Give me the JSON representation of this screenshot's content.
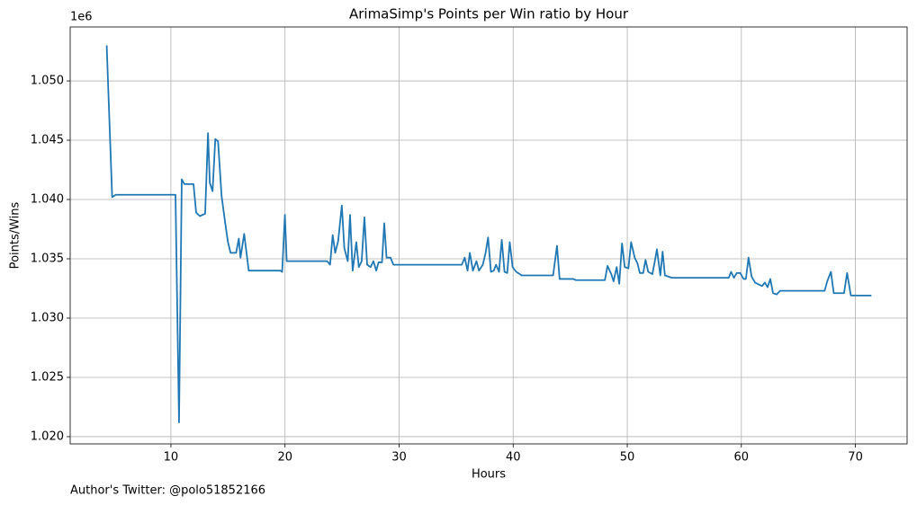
{
  "chart_data": {
    "type": "line",
    "title": "ArimaSimp's Points per Win ratio by Hour",
    "x_label": "Hours",
    "y_label": "Points/Wins",
    "y_offset_label": "1e6",
    "footnote": "Author's Twitter: @polo51852166",
    "color": "#1f77b4",
    "grid": true,
    "xlim": [
      1.17,
      74.53
    ],
    "ylim": [
      1019390,
      1054550
    ],
    "xticks": [
      10,
      20,
      30,
      40,
      50,
      60,
      70
    ],
    "yticks": [
      {
        "value": 1020000,
        "label": "1.020"
      },
      {
        "value": 1025000,
        "label": "1.025"
      },
      {
        "value": 1030000,
        "label": "1.030"
      },
      {
        "value": 1035000,
        "label": "1.035"
      },
      {
        "value": 1040000,
        "label": "1.040"
      },
      {
        "value": 1045000,
        "label": "1.045"
      },
      {
        "value": 1050000,
        "label": "1.050"
      }
    ],
    "x": [
      4.37,
      4.85,
      5.17,
      10.4,
      10.71,
      10.95,
      11.18,
      11.98,
      12.21,
      12.53,
      13.0,
      13.25,
      13.41,
      13.65,
      13.89,
      14.13,
      14.44,
      14.76,
      15.0,
      15.23,
      15.71,
      15.95,
      16.1,
      16.42,
      16.82,
      19.59,
      19.75,
      19.99,
      20.15,
      23.7,
      23.95,
      24.18,
      24.4,
      24.66,
      24.98,
      25.2,
      25.5,
      25.7,
      25.93,
      26.25,
      26.47,
      26.72,
      26.96,
      27.2,
      27.5,
      27.75,
      28.0,
      28.2,
      28.5,
      28.7,
      28.9,
      29.25,
      29.5,
      35.5,
      35.75,
      36.0,
      36.2,
      36.47,
      36.78,
      37.0,
      37.34,
      37.58,
      37.8,
      38.05,
      38.3,
      38.5,
      38.76,
      39.0,
      39.24,
      39.48,
      39.7,
      39.95,
      40.27,
      40.75,
      43.5,
      43.84,
      44.07,
      45.26,
      45.5,
      48.04,
      48.27,
      48.6,
      48.8,
      49.07,
      49.3,
      49.54,
      49.78,
      50.1,
      50.34,
      50.65,
      50.9,
      51.1,
      51.4,
      51.6,
      51.84,
      52.2,
      52.4,
      52.6,
      52.9,
      53.1,
      53.3,
      53.9,
      58.9,
      59.1,
      59.35,
      59.6,
      59.9,
      60.2,
      60.4,
      60.63,
      60.9,
      61.2,
      61.6,
      61.82,
      62.06,
      62.3,
      62.54,
      62.78,
      63.1,
      63.4,
      67.3,
      67.53,
      67.85,
      68.1,
      69.0,
      69.27,
      69.6,
      71.4
    ],
    "values": [
      1053000,
      1040200,
      1040400,
      1040400,
      1021200,
      1041700,
      1041300,
      1041300,
      1038900,
      1038600,
      1038800,
      1045600,
      1041400,
      1040700,
      1045100,
      1044900,
      1040300,
      1038000,
      1036400,
      1035500,
      1035500,
      1036700,
      1035100,
      1037100,
      1034000,
      1034000,
      1033900,
      1038700,
      1034800,
      1034800,
      1034500,
      1037000,
      1035500,
      1036500,
      1039500,
      1035900,
      1034800,
      1038700,
      1034000,
      1036400,
      1034300,
      1034800,
      1038500,
      1034500,
      1034300,
      1034800,
      1034000,
      1034700,
      1034700,
      1038000,
      1035100,
      1035100,
      1034500,
      1034500,
      1035100,
      1034000,
      1035500,
      1034000,
      1034800,
      1034000,
      1034500,
      1035500,
      1036800,
      1033900,
      1034000,
      1034500,
      1033900,
      1036600,
      1033900,
      1033800,
      1036400,
      1034300,
      1033900,
      1033600,
      1033600,
      1036100,
      1033300,
      1033300,
      1033200,
      1033200,
      1034400,
      1033700,
      1033100,
      1034300,
      1032900,
      1036300,
      1034300,
      1034200,
      1036400,
      1035100,
      1034600,
      1033800,
      1033800,
      1034900,
      1033900,
      1033700,
      1034700,
      1035800,
      1033600,
      1035600,
      1033600,
      1033400,
      1033400,
      1033900,
      1033400,
      1033800,
      1033800,
      1033300,
      1033300,
      1035100,
      1033500,
      1033000,
      1032800,
      1032700,
      1033000,
      1032600,
      1033300,
      1032100,
      1032000,
      1032300,
      1032300,
      1033100,
      1033900,
      1032100,
      1032100,
      1033800,
      1031900,
      1031900
    ]
  }
}
